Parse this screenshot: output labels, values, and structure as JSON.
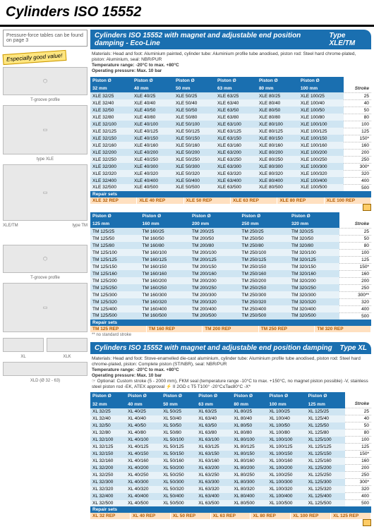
{
  "pageTitle": "Cylinders ISO 15552",
  "leftNote": "Pressure-force tables can be found on page 3",
  "badge": "Especially good value!",
  "captions": {
    "tgroove": "T-groove profile",
    "typeXLE": "type XLE",
    "xletm": "XLE/TM",
    "typeTM": "type TM",
    "xl": "XL",
    "xlk": "XLK",
    "xld": "XLD (Ø 32 - 63)"
  },
  "section1": {
    "title": "Cylinders ISO 15552 with magnet and adjustable end position damping - Eco-Line",
    "type": "Type XLE/TM",
    "materials": "Materials: Head and foot: Aluminium painted, cylinder tube: Aluminium profile tube anodised, piston rod: Steel hard chrome-plated, piston: Aluminium, seal: NBR/PUR",
    "tempRange": "Temperature range: -20°C to max. +80°C",
    "pressure": "Operating pressure: Max. 10 bar",
    "pistonLabel": "Piston Ø",
    "strokeLabel": "Stroke",
    "diams1": [
      "32 mm",
      "40 mm",
      "50 mm",
      "63 mm",
      "80 mm",
      "100 mm"
    ],
    "strokes1": [
      "25",
      "40",
      "50",
      "80",
      "100",
      "125",
      "150*",
      "160",
      "200",
      "250",
      "300*",
      "320",
      "400",
      "500"
    ],
    "rows1": [
      [
        "XLE 32/25",
        "XLE 40/25",
        "XLE 50/25",
        "XLE 63/25",
        "XLE 80/25",
        "XLE 100/25"
      ],
      [
        "XLE 32/40",
        "XLE 40/40",
        "XLE 50/40",
        "XLE 63/40",
        "XLE 80/40",
        "XLE 100/40"
      ],
      [
        "XLE 32/50",
        "XLE 40/50",
        "XLE 50/50",
        "XLE 63/50",
        "XLE 80/50",
        "XLE 100/50"
      ],
      [
        "XLE 32/80",
        "XLE 40/80",
        "XLE 50/80",
        "XLE 63/80",
        "XLE 80/80",
        "XLE 100/80"
      ],
      [
        "XLE 32/100",
        "XLE 40/100",
        "XLE 50/100",
        "XLE 63/100",
        "XLE 80/100",
        "XLE 100/100"
      ],
      [
        "XLE 32/125",
        "XLE 40/125",
        "XLE 50/125",
        "XLE 63/125",
        "XLE 80/125",
        "XLE 100/125"
      ],
      [
        "XLE 32/150",
        "XLE 40/150",
        "XLE 50/150",
        "XLE 63/150",
        "XLE 80/150",
        "XLE 100/150"
      ],
      [
        "XLE 32/160",
        "XLE 40/160",
        "XLE 50/160",
        "XLE 63/160",
        "XLE 80/160",
        "XLE 100/160"
      ],
      [
        "XLE 32/200",
        "XLE 40/200",
        "XLE 50/200",
        "XLE 63/200",
        "XLE 80/200",
        "XLE 100/200"
      ],
      [
        "XLE 32/250",
        "XLE 40/250",
        "XLE 50/250",
        "XLE 63/250",
        "XLE 80/250",
        "XLE 100/250"
      ],
      [
        "XLE 32/300",
        "XLE 40/300",
        "XLE 50/300",
        "XLE 63/300",
        "XLE 80/300",
        "XLE 100/300"
      ],
      [
        "XLE 32/320",
        "XLE 40/320",
        "XLE 50/320",
        "XLE 63/320",
        "XLE 80/320",
        "XLE 100/320"
      ],
      [
        "XLE 32/400",
        "XLE 40/400",
        "XLE 50/400",
        "XLE 63/400",
        "XLE 80/400",
        "XLE 100/400"
      ],
      [
        "XLE 32/500",
        "XLE 40/500",
        "XLE 50/500",
        "XLE 63/500",
        "XLE 80/500",
        "XLE 100/500"
      ]
    ],
    "repairLabel": "Repair sets",
    "repair1": [
      "XLE 32 REP",
      "XLE 40 REP",
      "XLE 50 REP",
      "XLE 63 REP",
      "XLE 80 REP",
      "XLE 100 REP"
    ],
    "diams2": [
      "125 mm",
      "160 mm",
      "200 mm",
      "250 mm",
      "320 mm"
    ],
    "strokes2": [
      "25",
      "50",
      "80",
      "100",
      "125",
      "150*",
      "160",
      "200",
      "250",
      "300**",
      "320",
      "400",
      "500"
    ],
    "rows2": [
      [
        "TM 125/25",
        "TM 160/25",
        "TM 200/25",
        "TM 250/25",
        "TM 320/25"
      ],
      [
        "TM 125/50",
        "TM 160/50",
        "TM 200/50",
        "TM 250/50",
        "TM 320/50"
      ],
      [
        "TM 125/80",
        "TM 160/80",
        "TM 200/80",
        "TM 250/80",
        "TM 320/80"
      ],
      [
        "TM 125/100",
        "TM 160/100",
        "TM 200/100",
        "TM 250/100",
        "TM 320/100"
      ],
      [
        "TM 125/125",
        "TM 160/125",
        "TM 200/125",
        "TM 250/125",
        "TM 320/125"
      ],
      [
        "TM 125/150",
        "TM 160/150",
        "TM 200/150",
        "TM 250/150",
        "TM 320/150"
      ],
      [
        "TM 125/160",
        "TM 160/160",
        "TM 200/160",
        "TM 250/160",
        "TM 320/160"
      ],
      [
        "TM 125/200",
        "TM 160/200",
        "TM 200/200",
        "TM 250/200",
        "TM 320/200"
      ],
      [
        "TM 125/250",
        "TM 160/250",
        "TM 200/250",
        "TM 250/250",
        "TM 320/250"
      ],
      [
        "TM 125/300",
        "TM 160/300",
        "TM 200/300",
        "TM 250/300",
        "TM 320/300"
      ],
      [
        "TM 125/320",
        "TM 160/320",
        "TM 200/320",
        "TM 250/320",
        "TM 320/320"
      ],
      [
        "TM 125/400",
        "TM 160/400",
        "TM 200/400",
        "TM 250/400",
        "TM 320/400"
      ],
      [
        "TM 125/500",
        "TM 160/500",
        "TM 200/500",
        "TM 250/500",
        "TM 320/500"
      ]
    ],
    "repair2": [
      "TM 125 REP",
      "TM 160 REP",
      "TM 200 REP",
      "TM 250 REP",
      "TM 320 REP"
    ],
    "footnote": "** no standard stroke"
  },
  "section2": {
    "title": "Cylinders ISO 15552 with magnet and adjustable end position damping",
    "type": "Type XL",
    "materials": "Materials: Head and foot: Stove-enamelled die-cast aluminium, cylinder tube: Aluminium profile tube anodised, piston rod: Steel hard chrome-plated, piston: Complete piston (ST/NBR), seal: NBR/PUR",
    "tempRange": "Temperature range: -20°C to max. +80°C",
    "pressure": "Operating pressure: Max. 10 bar",
    "optional": "☞ Optional: Custom stroke (5 - 2000 mm), FKM seal (temperature range -10°C to max. +150°C, no magnet piston possible) -V, stainless steel piston rod -EK, ATEX approval ⚡ II 2GD c T5 T100° -20°C≤Ta≤80°C -X*",
    "pistonLabel": "Piston Ø",
    "strokeLabel": "Stroke",
    "diams": [
      "32 mm",
      "40 mm",
      "50 mm",
      "63 mm",
      "80 mm",
      "100 mm",
      "125 mm"
    ],
    "strokes": [
      "25",
      "40",
      "50",
      "80",
      "100",
      "125",
      "150*",
      "160",
      "200",
      "250",
      "300*",
      "320",
      "400",
      "500"
    ],
    "rows": [
      [
        "XL 32/25",
        "XL 40/25",
        "XL 50/25",
        "XL 63/25",
        "XL 80/25",
        "XL 100/25",
        "XL 125/25"
      ],
      [
        "XL 32/40",
        "XL 40/40",
        "XL 50/40",
        "XL 63/40",
        "XL 80/40",
        "XL 100/40",
        "XL 125/40"
      ],
      [
        "XL 32/50",
        "XL 40/50",
        "XL 50/50",
        "XL 63/50",
        "XL 80/50",
        "XL 100/50",
        "XL 125/50"
      ],
      [
        "XL 32/80",
        "XL 40/80",
        "XL 50/80",
        "XL 63/80",
        "XL 80/80",
        "XL 100/80",
        "XL 125/80"
      ],
      [
        "XL 32/100",
        "XL 40/100",
        "XL 50/100",
        "XL 63/100",
        "XL 80/100",
        "XL 100/100",
        "XL 125/100"
      ],
      [
        "XL 32/125",
        "XL 40/125",
        "XL 50/125",
        "XL 63/125",
        "XL 80/125",
        "XL 100/125",
        "XL 125/125"
      ],
      [
        "XL 32/150",
        "XL 40/150",
        "XL 50/150",
        "XL 63/150",
        "XL 80/150",
        "XL 100/150",
        "XL 125/150"
      ],
      [
        "XL 32/160",
        "XL 40/160",
        "XL 50/160",
        "XL 63/160",
        "XL 80/160",
        "XL 100/160",
        "XL 125/160"
      ],
      [
        "XL 32/200",
        "XL 40/200",
        "XL 50/200",
        "XL 63/200",
        "XL 80/200",
        "XL 100/200",
        "XL 125/200"
      ],
      [
        "XL 32/250",
        "XL 40/250",
        "XL 50/250",
        "XL 63/250",
        "XL 80/250",
        "XL 100/250",
        "XL 125/250"
      ],
      [
        "XL 32/300",
        "XL 40/300",
        "XL 50/300",
        "XL 63/300",
        "XL 80/300",
        "XL 100/300",
        "XL 125/300"
      ],
      [
        "XL 32/320",
        "XL 40/320",
        "XL 50/320",
        "XL 63/320",
        "XL 80/320",
        "XL 100/320",
        "XL 125/320"
      ],
      [
        "XL 32/400",
        "XL 40/400",
        "XL 50/400",
        "XL 63/400",
        "XL 80/400",
        "XL 100/400",
        "XL 125/400"
      ],
      [
        "XL 32/500",
        "XL 40/500",
        "XL 50/500",
        "XL 63/500",
        "XL 80/500",
        "XL 100/500",
        "XL 125/500"
      ]
    ],
    "repairLabel": "Repair sets",
    "repair": [
      "XL 32 REP",
      "XL 40 REP",
      "XL 50 REP",
      "XL 63 REP",
      "XL 80 REP",
      "XL 100 REP",
      "XL 125 REP"
    ]
  }
}
